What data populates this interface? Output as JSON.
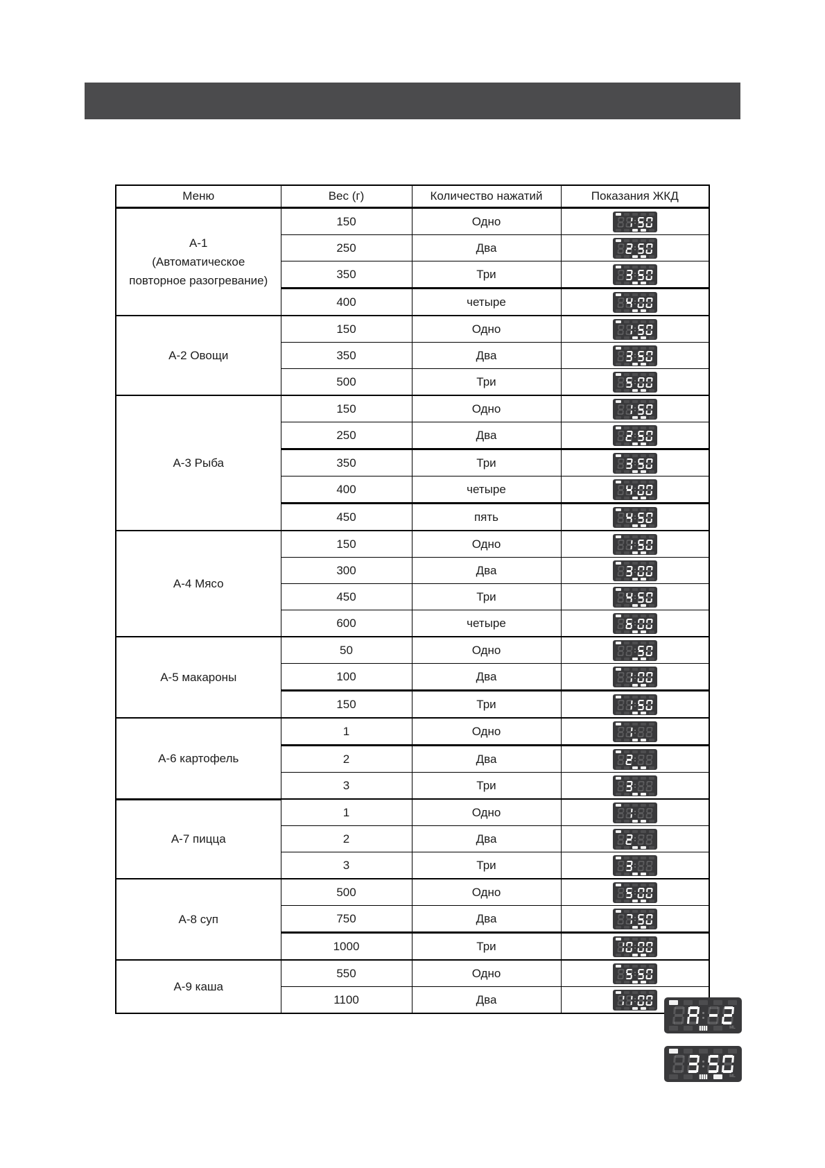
{
  "colors": {
    "top_bar": "#4b4b4d",
    "lcd_background": "#39393b",
    "lcd_lit_segment": "#fafafa",
    "table_border": "#000000"
  },
  "table": {
    "headers": [
      "Меню",
      "Вес (г)",
      "Количество нажатий",
      "Показания ЖКД"
    ],
    "sections": [
      {
        "menu": [
          "А-1",
          "(Автоматическое",
          "повторное разогревание)"
        ],
        "rows": [
          {
            "weight": "150",
            "presses": "Одно",
            "lcd": " 150"
          },
          {
            "weight": "250",
            "presses": "Два",
            "lcd": " 250"
          },
          {
            "weight": "350",
            "presses": "Три",
            "lcd": " 350",
            "thick_below": true
          },
          {
            "weight": "400",
            "presses": "четыре",
            "lcd": " 400"
          }
        ]
      },
      {
        "menu": [
          "А-2 Овощи"
        ],
        "rows": [
          {
            "weight": "150",
            "presses": "Одно",
            "lcd": " 150"
          },
          {
            "weight": "350",
            "presses": "Два",
            "lcd": " 350"
          },
          {
            "weight": "500",
            "presses": "Три",
            "lcd": " 500"
          }
        ]
      },
      {
        "menu": [
          "А-3 Рыба"
        ],
        "rows": [
          {
            "weight": "150",
            "presses": "Одно",
            "lcd": " 150"
          },
          {
            "weight": "250",
            "presses": "Два",
            "lcd": " 250",
            "thick_below": true
          },
          {
            "weight": "350",
            "presses": "Три",
            "lcd": " 350"
          },
          {
            "weight": "400",
            "presses": "четыре",
            "lcd": " 400",
            "thick_below": true
          },
          {
            "weight": "450",
            "presses": "пять",
            "lcd": " 450"
          }
        ]
      },
      {
        "menu": [
          "А-4 Мясо"
        ],
        "rows": [
          {
            "weight": "150",
            "presses": "Одно",
            "lcd": " 150"
          },
          {
            "weight": "300",
            "presses": "Два",
            "lcd": " 300"
          },
          {
            "weight": "450",
            "presses": "Три",
            "lcd": " 450"
          },
          {
            "weight": "600",
            "presses": "четыре",
            "lcd": " 600"
          }
        ]
      },
      {
        "menu": [
          "А-5 макароны"
        ],
        "rows": [
          {
            "weight": "50",
            "presses": "Одно",
            "lcd": "  50"
          },
          {
            "weight": "100",
            "presses": "Два",
            "lcd": " 100",
            "thick_below": true
          },
          {
            "weight": "150",
            "presses": "Три",
            "lcd": " 150"
          }
        ]
      },
      {
        "menu": [
          "А-6 картофель"
        ],
        "rows": [
          {
            "weight": "1",
            "presses": "Одно",
            "lcd": " 1  ",
            "thick_below": true
          },
          {
            "weight": "2",
            "presses": "Два",
            "lcd": " 2  "
          },
          {
            "weight": "3",
            "presses": "Три",
            "lcd": " 3  "
          }
        ]
      },
      {
        "menu": [
          "А-7 пицца"
        ],
        "rows": [
          {
            "weight": "1",
            "presses": "Одно",
            "lcd": " 1  "
          },
          {
            "weight": "2",
            "presses": "Два",
            "lcd": " 2  "
          },
          {
            "weight": "3",
            "presses": "Три",
            "lcd": " 3  "
          }
        ]
      },
      {
        "menu": [
          "А-8 суп"
        ],
        "rows": [
          {
            "weight": "500",
            "presses": "Одно",
            "lcd": " 500"
          },
          {
            "weight": "750",
            "presses": "Два",
            "lcd": " 750",
            "thick_below": true
          },
          {
            "weight": "1000",
            "presses": "Три",
            "lcd": "1000"
          }
        ]
      },
      {
        "menu": [
          "А-9 каша"
        ],
        "rows": [
          {
            "weight": "550",
            "presses": "Одно",
            "lcd": " 550"
          },
          {
            "weight": "1100",
            "presses": "Два",
            "lcd": "1100"
          }
        ]
      }
    ]
  },
  "lcd": {
    "ml_label": "ML",
    "icons": {
      "top": [
        "auto-reheat-icon",
        "defrost-icon",
        "snowflake-icon",
        "beverage-icon",
        "weight-select-icon"
      ],
      "bottom": [
        "clock-icon",
        "preset-icon",
        "keypad-icon",
        "gram-icon",
        "ml-icon"
      ]
    },
    "small_top_lit": [
      0
    ],
    "small_bottom_lit": [
      2,
      3
    ]
  },
  "lcd_panels": [
    {
      "chars": " A-2",
      "top_lit": [
        0
      ],
      "bottom_lit": [
        2
      ]
    },
    {
      "chars": " 350",
      "top_lit": [
        0
      ],
      "bottom_lit": [
        2,
        3
      ]
    }
  ]
}
